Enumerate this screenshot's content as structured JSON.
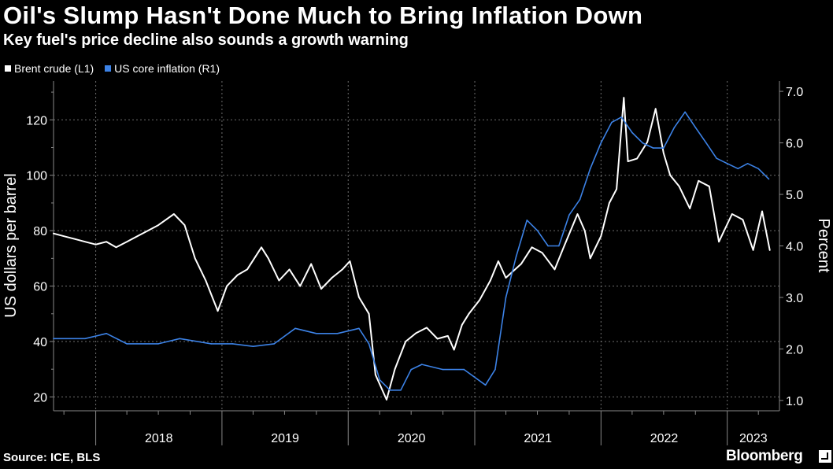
{
  "header": {
    "title": "Oil's Slump Hasn't Done Much to Bring Inflation Down",
    "subtitle": "Key fuel's price decline also sounds a growth warning"
  },
  "legend": {
    "brent_label": "Brent crude (L1)",
    "core_label": "US core inflation (R1)"
  },
  "footer": {
    "source": "Source: ICE, BLS",
    "brand": "Bloomberg"
  },
  "colors": {
    "background": "#000000",
    "brent": "#ffffff",
    "core": "#3c82e6",
    "grid": "#6e6e6e"
  },
  "chart_data": {
    "type": "line",
    "xlabel": "",
    "x_tick_labels": [
      "2018",
      "2019",
      "2020",
      "2021",
      "2022",
      "2023"
    ],
    "x_range": [
      "2017-09",
      "2023-06"
    ],
    "left_axis": {
      "label": "US dollars per barrel",
      "ticks": [
        "20",
        "40",
        "60",
        "80",
        "100",
        "120"
      ],
      "ylim": [
        15,
        134
      ]
    },
    "right_axis": {
      "label": "Percent",
      "ticks": [
        "1.0",
        "2.0",
        "3.0",
        "4.0",
        "5.0",
        "6.0",
        "7.0"
      ],
      "ylim": [
        0.8,
        7.2
      ]
    },
    "grid": true,
    "legend_position": "top-left",
    "series": [
      {
        "name": "Brent crude (L1)",
        "axis": "left",
        "points": [
          [
            "2017-09-01",
            79
          ],
          [
            "2017-10-01",
            78
          ],
          [
            "2017-11-01",
            77
          ],
          [
            "2017-12-01",
            76
          ],
          [
            "2018-01-01",
            75
          ],
          [
            "2018-02-01",
            76
          ],
          [
            "2018-03-01",
            74
          ],
          [
            "2018-04-01",
            76
          ],
          [
            "2018-05-01",
            78
          ],
          [
            "2018-06-01",
            80
          ],
          [
            "2018-07-01",
            82
          ],
          [
            "2018-08-15",
            86
          ],
          [
            "2018-09-15",
            82
          ],
          [
            "2018-10-15",
            70
          ],
          [
            "2018-11-15",
            62
          ],
          [
            "2018-12-20",
            51
          ],
          [
            "2019-01-15",
            60
          ],
          [
            "2019-02-15",
            64
          ],
          [
            "2019-03-15",
            66
          ],
          [
            "2019-04-25",
            74
          ],
          [
            "2019-05-15",
            70
          ],
          [
            "2019-06-15",
            62
          ],
          [
            "2019-07-15",
            66
          ],
          [
            "2019-08-15",
            60
          ],
          [
            "2019-09-16",
            68
          ],
          [
            "2019-10-15",
            59
          ],
          [
            "2019-11-15",
            63
          ],
          [
            "2019-12-15",
            66
          ],
          [
            "2020-01-06",
            69
          ],
          [
            "2020-02-01",
            56
          ],
          [
            "2020-03-01",
            50
          ],
          [
            "2020-03-20",
            28
          ],
          [
            "2020-04-21",
            19
          ],
          [
            "2020-05-15",
            30
          ],
          [
            "2020-06-15",
            40
          ],
          [
            "2020-07-15",
            43
          ],
          [
            "2020-08-15",
            45
          ],
          [
            "2020-09-15",
            41
          ],
          [
            "2020-10-15",
            42
          ],
          [
            "2020-11-02",
            37
          ],
          [
            "2020-11-25",
            46
          ],
          [
            "2020-12-15",
            50
          ],
          [
            "2021-01-15",
            55
          ],
          [
            "2021-02-15",
            62
          ],
          [
            "2021-03-10",
            69
          ],
          [
            "2021-04-01",
            63
          ],
          [
            "2021-05-15",
            68
          ],
          [
            "2021-06-15",
            74
          ],
          [
            "2021-07-15",
            72
          ],
          [
            "2021-08-20",
            66
          ],
          [
            "2021-09-15",
            74
          ],
          [
            "2021-10-25",
            86
          ],
          [
            "2021-11-15",
            80
          ],
          [
            "2021-12-01",
            70
          ],
          [
            "2022-01-01",
            78
          ],
          [
            "2022-01-25",
            90
          ],
          [
            "2022-02-15",
            95
          ],
          [
            "2022-03-08",
            128
          ],
          [
            "2022-03-20",
            105
          ],
          [
            "2022-04-15",
            106
          ],
          [
            "2022-05-15",
            112
          ],
          [
            "2022-06-08",
            124
          ],
          [
            "2022-07-01",
            108
          ],
          [
            "2022-07-20",
            100
          ],
          [
            "2022-08-15",
            96
          ],
          [
            "2022-09-15",
            88
          ],
          [
            "2022-10-10",
            98
          ],
          [
            "2022-11-10",
            96
          ],
          [
            "2022-12-08",
            76
          ],
          [
            "2023-01-15",
            86
          ],
          [
            "2023-02-15",
            84
          ],
          [
            "2023-03-17",
            73
          ],
          [
            "2023-04-12",
            87
          ],
          [
            "2023-05-04",
            73
          ]
        ]
      },
      {
        "name": "US core inflation (R1)",
        "axis": "right",
        "points": [
          [
            "2017-09-01",
            2.2
          ],
          [
            "2017-12-01",
            2.2
          ],
          [
            "2018-02-01",
            2.3
          ],
          [
            "2018-04-01",
            2.1
          ],
          [
            "2018-07-01",
            2.1
          ],
          [
            "2018-09-01",
            2.2
          ],
          [
            "2018-12-01",
            2.1
          ],
          [
            "2019-02-01",
            2.1
          ],
          [
            "2019-04-01",
            2.05
          ],
          [
            "2019-06-01",
            2.1
          ],
          [
            "2019-08-01",
            2.4
          ],
          [
            "2019-10-01",
            2.3
          ],
          [
            "2019-12-01",
            2.3
          ],
          [
            "2020-02-01",
            2.4
          ],
          [
            "2020-03-01",
            2.1
          ],
          [
            "2020-04-01",
            1.4
          ],
          [
            "2020-05-01",
            1.2
          ],
          [
            "2020-06-01",
            1.2
          ],
          [
            "2020-07-01",
            1.6
          ],
          [
            "2020-08-01",
            1.7
          ],
          [
            "2020-10-01",
            1.6
          ],
          [
            "2020-12-01",
            1.6
          ],
          [
            "2021-02-01",
            1.3
          ],
          [
            "2021-03-01",
            1.6
          ],
          [
            "2021-04-01",
            3.0
          ],
          [
            "2021-05-01",
            3.8
          ],
          [
            "2021-06-01",
            4.5
          ],
          [
            "2021-07-01",
            4.3
          ],
          [
            "2021-08-01",
            4.0
          ],
          [
            "2021-09-01",
            4.0
          ],
          [
            "2021-10-01",
            4.6
          ],
          [
            "2021-11-01",
            4.9
          ],
          [
            "2021-12-01",
            5.5
          ],
          [
            "2022-01-01",
            6.0
          ],
          [
            "2022-02-01",
            6.4
          ],
          [
            "2022-03-01",
            6.5
          ],
          [
            "2022-04-01",
            6.2
          ],
          [
            "2022-05-01",
            6.0
          ],
          [
            "2022-06-01",
            5.9
          ],
          [
            "2022-07-01",
            5.9
          ],
          [
            "2022-08-01",
            6.3
          ],
          [
            "2022-09-01",
            6.6
          ],
          [
            "2022-10-01",
            6.3
          ],
          [
            "2022-11-01",
            6.0
          ],
          [
            "2022-12-01",
            5.7
          ],
          [
            "2023-01-01",
            5.6
          ],
          [
            "2023-02-01",
            5.5
          ],
          [
            "2023-03-01",
            5.6
          ],
          [
            "2023-04-01",
            5.5
          ],
          [
            "2023-05-01",
            5.3
          ]
        ]
      }
    ]
  }
}
